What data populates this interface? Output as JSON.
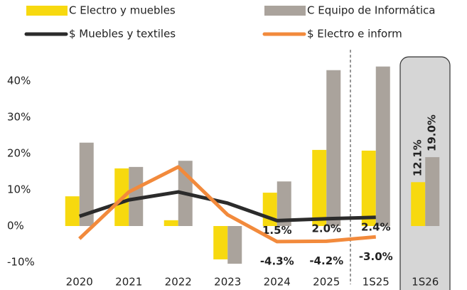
{
  "chart_data": {
    "type": "bar_line",
    "categories": [
      "2020",
      "2021",
      "2022",
      "2023",
      "2024",
      "2025",
      "1S25",
      "1S26"
    ],
    "series": [
      {
        "name": "C Electro y muebles",
        "color": "#f7d90f",
        "kind": "bar",
        "values": [
          8.2,
          15.9,
          1.6,
          -9.2,
          9.2,
          21.0,
          20.8,
          12.1
        ],
        "value_labels": [
          null,
          null,
          null,
          null,
          null,
          null,
          null,
          "12.1%"
        ]
      },
      {
        "name": "C Equipo de Informática",
        "color": "#aaa39c",
        "kind": "bar",
        "values": [
          23.0,
          16.3,
          18.0,
          -10.4,
          12.3,
          43.0,
          44.0,
          19.0
        ],
        "value_labels": [
          null,
          null,
          null,
          null,
          null,
          null,
          null,
          "19.0%"
        ]
      },
      {
        "name": "$ Muebles y textiles",
        "color": "#2b2b2b",
        "kind": "line",
        "values": [
          2.7,
          7.2,
          9.4,
          6.3,
          1.5,
          2.0,
          2.4,
          null
        ],
        "value_labels": [
          null,
          null,
          null,
          null,
          "1.5%",
          "2.0%",
          "2.4%",
          null
        ]
      },
      {
        "name": "$ Electro e inform",
        "color": "#f28a3c",
        "kind": "line",
        "values": [
          -3.5,
          9.4,
          16.3,
          3.1,
          -4.3,
          -4.2,
          -3.0,
          null
        ],
        "value_labels": [
          null,
          null,
          null,
          null,
          "-4.3%",
          "-4.2%",
          "-3.0%",
          null
        ]
      }
    ],
    "ylim": [
      -15,
      45
    ],
    "yticks": [
      {
        "value": -10,
        "label": "-10%"
      },
      {
        "value": 0,
        "label": "0%"
      },
      {
        "value": 10,
        "label": "10%"
      },
      {
        "value": 20,
        "label": "20%"
      },
      {
        "value": 30,
        "label": "30%"
      },
      {
        "value": 40,
        "label": "40%"
      }
    ],
    "grid": false
  }
}
